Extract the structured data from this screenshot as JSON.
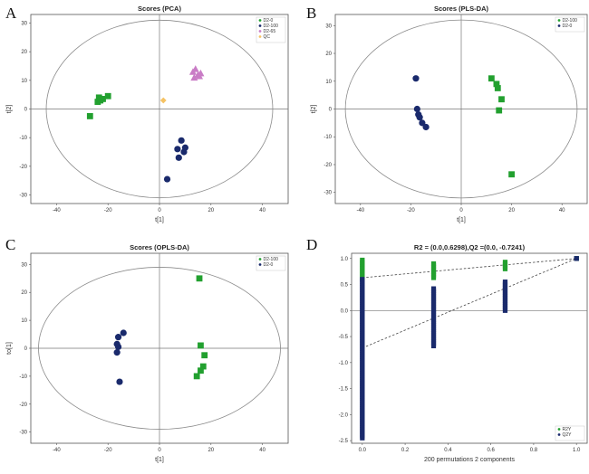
{
  "figure": {
    "panel_letters": [
      "A",
      "B",
      "C",
      "D"
    ]
  },
  "chart_data": [
    {
      "type": "scatter",
      "title": "Scores (PCA)",
      "xlabel": "t[1]",
      "ylabel": "t[2]",
      "xlim": [
        -50,
        50
      ],
      "ylim": [
        -33,
        33
      ],
      "xticks": [
        -40,
        -20,
        0,
        20,
        40
      ],
      "yticks": [
        -30,
        -20,
        -10,
        0,
        10,
        20,
        30
      ],
      "grid": false,
      "legend": "top-right",
      "ellipse": {
        "rx": 44,
        "ry": 31
      },
      "series": [
        {
          "name": "D2-0",
          "marker": "square",
          "color": "#22a02f",
          "x": [
            -27,
            -24,
            -23.5,
            -22,
            -20,
            -23
          ],
          "y": [
            -2.5,
            2.5,
            4,
            3.5,
            4.5,
            3
          ]
        },
        {
          "name": "D2-100",
          "marker": "circle",
          "color": "#1a2a6c",
          "x": [
            8.5,
            10,
            7,
            9.5,
            7.5,
            3
          ],
          "y": [
            -11,
            -13.5,
            -14,
            -15,
            -17,
            -24.5
          ]
        },
        {
          "name": "D2-65",
          "marker": "triangle",
          "color": "#c97dc6",
          "x": [
            13,
            14,
            15,
            16,
            13.5,
            15.5
          ],
          "y": [
            13,
            14,
            12,
            12.5,
            11,
            11.5
          ]
        },
        {
          "name": "QC",
          "marker": "diamond",
          "color": "#f5c263",
          "x": [
            1.5
          ],
          "y": [
            3
          ]
        }
      ]
    },
    {
      "type": "scatter",
      "title": "Scores (PLS-DA)",
      "xlabel": "t[1]",
      "ylabel": "t[2]",
      "xlim": [
        -50,
        50
      ],
      "ylim": [
        -34,
        34
      ],
      "xticks": [
        -40,
        -20,
        0,
        20,
        40
      ],
      "yticks": [
        -30,
        -20,
        -10,
        0,
        10,
        20,
        30
      ],
      "grid": false,
      "legend": "top-right",
      "ellipse": {
        "rx": 46,
        "ry": 32
      },
      "series": [
        {
          "name": "D2-100",
          "marker": "square",
          "color": "#22a02f",
          "x": [
            12,
            14,
            14.5,
            16,
            15,
            20
          ],
          "y": [
            11,
            9,
            7.5,
            3.5,
            -0.5,
            -23.5
          ]
        },
        {
          "name": "D2-0",
          "marker": "circle",
          "color": "#1a2a6c",
          "x": [
            -18,
            -17.5,
            -17,
            -16.5,
            -15.5,
            -14
          ],
          "y": [
            11,
            0,
            -2,
            -3,
            -5,
            -6.5
          ]
        }
      ]
    },
    {
      "type": "scatter",
      "title": "Scores (OPLS-DA)",
      "xlabel": "t[1]",
      "ylabel": "to[1]",
      "xlim": [
        -50,
        50
      ],
      "ylim": [
        -34,
        34
      ],
      "xticks": [
        -40,
        -20,
        0,
        20,
        40
      ],
      "yticks": [
        -30,
        -20,
        -10,
        0,
        10,
        20,
        30
      ],
      "grid": false,
      "legend": "top-right",
      "ellipse": {
        "rx": 47,
        "ry": 29
      },
      "series": [
        {
          "name": "D2-100",
          "marker": "square",
          "color": "#22a02f",
          "x": [
            15.5,
            16,
            17.5,
            17,
            16,
            14.5
          ],
          "y": [
            25,
            1,
            -2.5,
            -6.5,
            -8,
            -10
          ]
        },
        {
          "name": "D2-0",
          "marker": "circle",
          "color": "#1a2a6c",
          "x": [
            -14,
            -16,
            -16.5,
            -16,
            -16.5,
            -15.5
          ],
          "y": [
            5.5,
            4,
            1.5,
            0.5,
            -1.5,
            -12
          ]
        }
      ]
    },
    {
      "type": "scatter",
      "title": "R2 = (0.0,0.6298),Q2 =(0.0, -0.7241)",
      "xlabel": "200 permutations 2 components",
      "ylabel": "",
      "xlim": [
        -0.05,
        1.05
      ],
      "ylim": [
        -2.55,
        1.1
      ],
      "xticks": [
        0,
        0.2,
        0.4,
        0.6,
        0.8,
        1
      ],
      "xticklabels": [
        "0.0",
        "0.2",
        "0.4",
        "0.6",
        "0.8",
        "1.0"
      ],
      "yticks": [
        1,
        0.5,
        0,
        -0.5,
        -1,
        -1.5,
        -2,
        -2.5
      ],
      "yticklabels": [
        "1.0",
        "0.5",
        "0.0",
        "-0.5",
        "-1.0",
        "-1.5",
        "-2.0",
        "-2.5"
      ],
      "grid": false,
      "legend": "bottom-right",
      "series": [
        {
          "name": "R2Y",
          "marker": "square",
          "color": "#22a02f",
          "x": [
            0,
            0.333,
            0.667,
            1
          ],
          "y_min": [
            0.6,
            0.63,
            0.8,
            1
          ],
          "y_max": [
            0.97,
            0.9,
            0.93,
            1
          ],
          "regression": {
            "x": [
              0,
              1
            ],
            "y": [
              0.63,
              1
            ]
          }
        },
        {
          "name": "Q2Y",
          "marker": "square",
          "color": "#1a2a6c",
          "x": [
            0,
            0.333,
            0.667,
            1
          ],
          "y_min": [
            -2.45,
            -0.68,
            0,
            1
          ],
          "y_max": [
            0.6,
            0.42,
            0.55,
            1
          ],
          "regression": {
            "x": [
              0,
              1
            ],
            "y": [
              -0.72,
              1
            ]
          }
        }
      ]
    }
  ]
}
